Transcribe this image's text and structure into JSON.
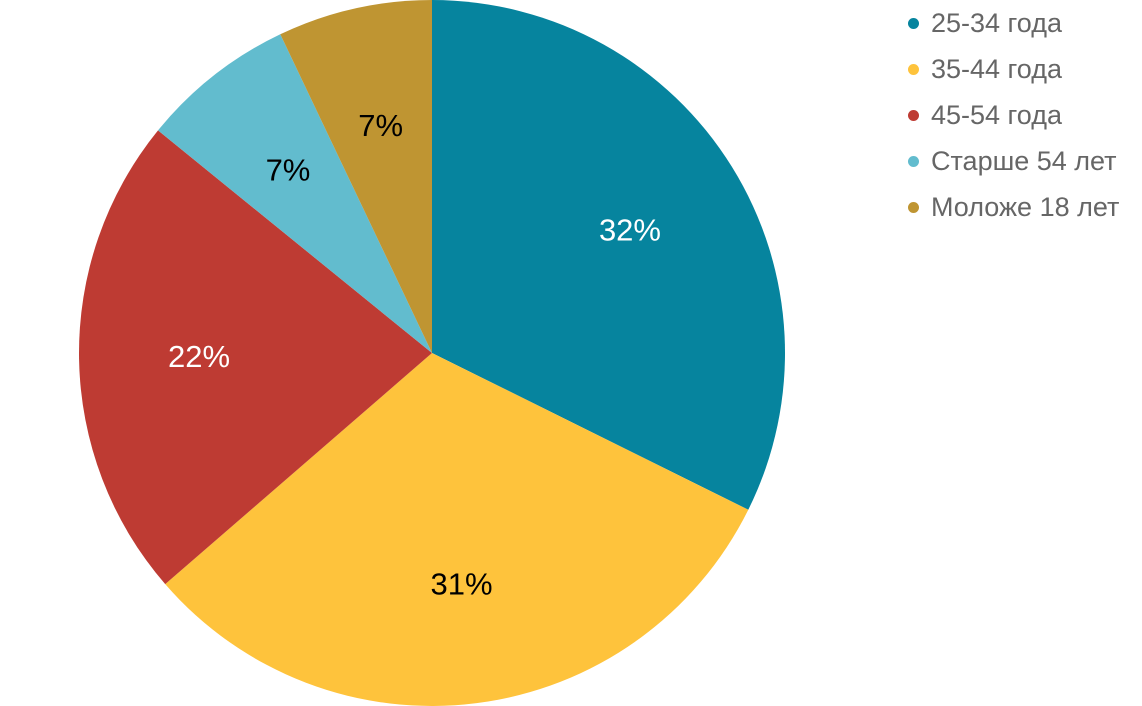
{
  "chart_data": {
    "type": "pie",
    "title": "",
    "start_angle_deg": 0,
    "direction": "clockwise",
    "legend_position": "top-right",
    "slices": [
      {
        "name": "25-34 года",
        "value": 32,
        "label": "32%",
        "color": "#06849E",
        "label_color": "#ffffff"
      },
      {
        "name": "35-44 года",
        "value": 31,
        "label": "31%",
        "color": "#FEC33C",
        "label_color": "#000000"
      },
      {
        "name": "45-54 года",
        "value": 22,
        "label": "22%",
        "color": "#BE3B33",
        "label_color": "#ffffff"
      },
      {
        "name": "Старше 54 лет",
        "value": 7,
        "label": "7%",
        "color": "#62BCCE",
        "label_color": "#000000"
      },
      {
        "name": "Моложе 18 лет",
        "value": 7,
        "label": "7%",
        "color": "#BF9532",
        "label_color": "#000000"
      }
    ]
  }
}
